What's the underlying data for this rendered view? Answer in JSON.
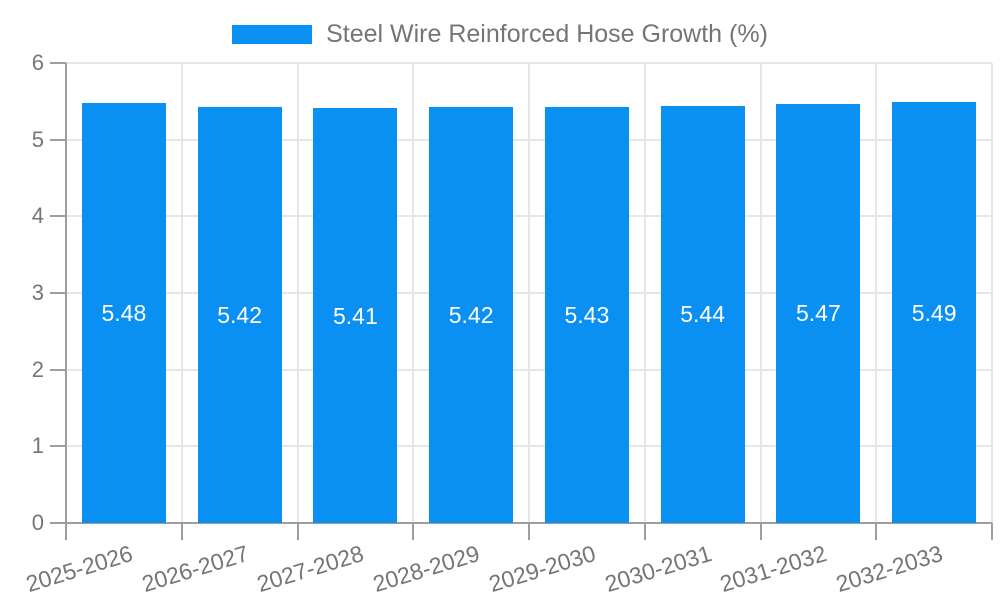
{
  "legend": {
    "label": "Steel Wire Reinforced Hose Growth (%)"
  },
  "chart_data": {
    "type": "bar",
    "title": "",
    "xlabel": "",
    "ylabel": "",
    "categories": [
      "2025-2026",
      "2026-2027",
      "2027-2028",
      "2028-2029",
      "2029-2030",
      "2030-2031",
      "2031-2032",
      "2032-2033"
    ],
    "series": [
      {
        "name": "Steel Wire Reinforced Hose Growth (%)",
        "values": [
          5.48,
          5.42,
          5.41,
          5.42,
          5.43,
          5.44,
          5.47,
          5.49
        ]
      }
    ],
    "value_labels": [
      "5.48",
      "5.42",
      "5.41",
      "5.42",
      "5.43",
      "5.44",
      "5.47",
      "5.49"
    ],
    "ylim": [
      0,
      6
    ],
    "ytick_step": 1,
    "ytick_labels": [
      "0",
      "1",
      "2",
      "3",
      "4",
      "5",
      "6"
    ],
    "grid": true,
    "legend_position": "top-center",
    "colors": {
      "bar": "#0a90f3",
      "grid_line": "#e6e6e6",
      "axis_line": "#9e9e9e",
      "axis_text": "#757575",
      "value_label_text": "#ffffff",
      "background": "#ffffff"
    }
  }
}
